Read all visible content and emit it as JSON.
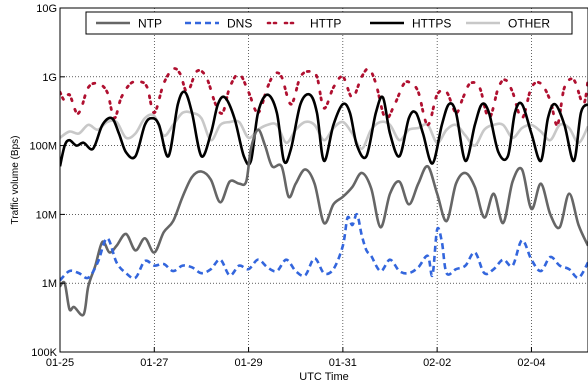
{
  "chart_data": {
    "type": "line",
    "xlabel": "UTC Time",
    "ylabel": "Traffic volume (Bps)",
    "x_ticks": [
      "01-25",
      "01-27",
      "01-29",
      "01-31",
      "02-02",
      "02-04"
    ],
    "x_tick_days": [
      0,
      2,
      4,
      6,
      8,
      10
    ],
    "xlim": [
      0,
      11.2
    ],
    "y_scale": "log",
    "ylim": [
      100000,
      10000000000
    ],
    "y_ticks": [
      {
        "label": "100K",
        "value": 100000
      },
      {
        "label": "1M",
        "value": 1000000
      },
      {
        "label": "10M",
        "value": 10000000
      },
      {
        "label": "100M",
        "value": 100000000
      },
      {
        "label": "1G",
        "value": 1000000000
      },
      {
        "label": "10G",
        "value": 10000000000
      }
    ],
    "legend_position": "top",
    "series": [
      {
        "name": "NTP",
        "color": "#666666",
        "dash": "solid",
        "x": [
          0,
          0.1,
          0.2,
          0.3,
          0.5,
          0.6,
          0.75,
          0.9,
          1.05,
          1.2,
          1.4,
          1.6,
          1.8,
          2.0,
          2.2,
          2.4,
          2.6,
          2.8,
          3.0,
          3.2,
          3.4,
          3.6,
          3.8,
          3.95,
          4.05,
          4.2,
          4.35,
          4.5,
          4.7,
          4.85,
          5.0,
          5.2,
          5.4,
          5.6,
          5.8,
          6.0,
          6.2,
          6.4,
          6.6,
          6.8,
          7.0,
          7.2,
          7.4,
          7.6,
          7.8,
          8.0,
          8.2,
          8.4,
          8.6,
          8.8,
          9.0,
          9.2,
          9.4,
          9.6,
          9.8,
          10.0,
          10.2,
          10.4,
          10.6,
          10.8,
          11.0,
          11.2
        ],
        "y": [
          900000,
          1000000,
          420000,
          450000,
          350000,
          900000,
          1800000,
          4000000,
          2800000,
          3500000,
          5200000,
          3000000,
          4500000,
          2800000,
          5500000,
          8000000,
          18000000,
          35000000,
          42000000,
          32000000,
          15000000,
          30000000,
          28000000,
          30000000,
          90000000,
          170000000,
          100000000,
          50000000,
          50000000,
          18000000,
          28000000,
          45000000,
          28000000,
          7500000,
          14000000,
          18000000,
          25000000,
          40000000,
          24000000,
          6500000,
          20000000,
          30000000,
          14000000,
          28000000,
          50000000,
          20000000,
          8000000,
          28000000,
          40000000,
          25000000,
          9000000,
          20000000,
          7500000,
          30000000,
          45000000,
          12000000,
          28000000,
          10000000,
          6500000,
          20000000,
          7000000,
          3500000
        ]
      },
      {
        "name": "DNS",
        "color": "#3366dd",
        "dash": "dashed",
        "x": [
          0,
          0.2,
          0.4,
          0.6,
          0.8,
          1.0,
          1.2,
          1.4,
          1.6,
          1.8,
          2.0,
          2.2,
          2.4,
          2.6,
          2.8,
          3.0,
          3.2,
          3.4,
          3.6,
          3.8,
          4.0,
          4.2,
          4.4,
          4.6,
          4.8,
          5.0,
          5.2,
          5.4,
          5.6,
          5.8,
          6.0,
          6.1,
          6.2,
          6.3,
          6.4,
          6.5,
          6.6,
          6.8,
          7.0,
          7.2,
          7.4,
          7.6,
          7.8,
          7.9,
          8.0,
          8.1,
          8.2,
          8.4,
          8.6,
          8.8,
          9.0,
          9.2,
          9.4,
          9.6,
          9.8,
          10.0,
          10.2,
          10.4,
          10.6,
          10.8,
          11.0,
          11.2
        ],
        "y": [
          1100000,
          1500000,
          1400000,
          1200000,
          2000000,
          4500000,
          2000000,
          1400000,
          1200000,
          2100000,
          1800000,
          1900000,
          1500000,
          1800000,
          1700000,
          1400000,
          1600000,
          2200000,
          1300000,
          1800000,
          1600000,
          2200000,
          1700000,
          1500000,
          2200000,
          1500000,
          1300000,
          2300000,
          1400000,
          1600000,
          3500000,
          9000000,
          7000000,
          10000000,
          5000000,
          3000000,
          2500000,
          1500000,
          2200000,
          1500000,
          1400000,
          1700000,
          2500000,
          1300000,
          6000000,
          4000000,
          1400000,
          1600000,
          1800000,
          2800000,
          1400000,
          1600000,
          2200000,
          1800000,
          4200000,
          2200000,
          1500000,
          2400000,
          1800000,
          1600000,
          1200000,
          2000000
        ]
      },
      {
        "name": "HTTP",
        "color": "#b01030",
        "dash": "dashdot",
        "x": [
          0,
          0.1,
          0.2,
          0.35,
          0.45,
          0.6,
          0.8,
          1.0,
          1.15,
          1.3,
          1.5,
          1.7,
          1.85,
          2.0,
          2.2,
          2.4,
          2.55,
          2.7,
          2.9,
          3.1,
          3.3,
          3.45,
          3.6,
          3.8,
          4.0,
          4.2,
          4.4,
          4.55,
          4.7,
          4.9,
          5.1,
          5.3,
          5.45,
          5.6,
          5.8,
          6.0,
          6.2,
          6.4,
          6.55,
          6.7,
          6.9,
          7.1,
          7.3,
          7.45,
          7.6,
          7.8,
          8.0,
          8.2,
          8.4,
          8.55,
          8.7,
          8.9,
          9.1,
          9.3,
          9.45,
          9.6,
          9.8,
          10.0,
          10.2,
          10.4,
          10.55,
          10.7,
          10.9,
          11.1,
          11.2
        ],
        "y": [
          600000000,
          450000000,
          550000000,
          300000000,
          350000000,
          700000000,
          800000000,
          600000000,
          250000000,
          500000000,
          800000000,
          850000000,
          700000000,
          300000000,
          800000000,
          1300000000,
          1100000000,
          600000000,
          1200000000,
          1000000000,
          400000000,
          300000000,
          700000000,
          1100000000,
          600000000,
          300000000,
          700000000,
          1100000000,
          1000000000,
          400000000,
          1000000000,
          1200000000,
          1000000000,
          350000000,
          700000000,
          1000000000,
          500000000,
          1000000000,
          1300000000,
          800000000,
          250000000,
          400000000,
          800000000,
          800000000,
          600000000,
          200000000,
          550000000,
          600000000,
          300000000,
          500000000,
          800000000,
          700000000,
          250000000,
          700000000,
          900000000,
          600000000,
          250000000,
          700000000,
          800000000,
          450000000,
          200000000,
          700000000,
          900000000,
          400000000,
          900000000
        ]
      },
      {
        "name": "HTTPS",
        "color": "#000000",
        "dash": "solid",
        "x": [
          0,
          0.1,
          0.2,
          0.35,
          0.5,
          0.7,
          0.9,
          1.1,
          1.25,
          1.4,
          1.6,
          1.8,
          1.95,
          2.1,
          2.3,
          2.5,
          2.65,
          2.8,
          3.0,
          3.2,
          3.35,
          3.5,
          3.7,
          3.9,
          4.05,
          4.2,
          4.4,
          4.6,
          4.75,
          4.9,
          5.1,
          5.3,
          5.45,
          5.6,
          5.8,
          6.0,
          6.15,
          6.3,
          6.5,
          6.7,
          6.85,
          7.0,
          7.2,
          7.4,
          7.55,
          7.7,
          7.9,
          8.1,
          8.25,
          8.4,
          8.6,
          8.8,
          8.95,
          9.1,
          9.3,
          9.5,
          9.65,
          9.8,
          10.0,
          10.2,
          10.35,
          10.5,
          10.7,
          10.9,
          11.05,
          11.2
        ],
        "y": [
          50000000,
          100000000,
          120000000,
          100000000,
          110000000,
          90000000,
          200000000,
          250000000,
          150000000,
          80000000,
          70000000,
          200000000,
          250000000,
          200000000,
          70000000,
          400000000,
          600000000,
          300000000,
          70000000,
          150000000,
          400000000,
          500000000,
          250000000,
          70000000,
          60000000,
          300000000,
          550000000,
          300000000,
          60000000,
          90000000,
          400000000,
          550000000,
          300000000,
          60000000,
          200000000,
          400000000,
          300000000,
          100000000,
          70000000,
          300000000,
          500000000,
          150000000,
          70000000,
          250000000,
          300000000,
          150000000,
          55000000,
          200000000,
          400000000,
          300000000,
          60000000,
          200000000,
          400000000,
          300000000,
          80000000,
          70000000,
          300000000,
          400000000,
          150000000,
          60000000,
          250000000,
          400000000,
          200000000,
          60000000,
          300000000,
          400000000
        ]
      },
      {
        "name": "OTHER",
        "color": "#c8c8c8",
        "dash": "solid",
        "x": [
          0,
          0.2,
          0.4,
          0.6,
          0.8,
          1.0,
          1.2,
          1.4,
          1.6,
          1.8,
          2.0,
          2.2,
          2.4,
          2.6,
          2.8,
          3.0,
          3.2,
          3.4,
          3.6,
          3.8,
          4.0,
          4.2,
          4.4,
          4.6,
          4.8,
          5.0,
          5.2,
          5.4,
          5.6,
          5.8,
          6.0,
          6.2,
          6.4,
          6.6,
          6.8,
          7.0,
          7.2,
          7.4,
          7.6,
          7.8,
          8.0,
          8.2,
          8.4,
          8.6,
          8.8,
          9.0,
          9.2,
          9.4,
          9.6,
          9.8,
          10.0,
          10.2,
          10.4,
          10.6,
          10.8,
          11.0,
          11.2
        ],
        "y": [
          130000000,
          160000000,
          150000000,
          200000000,
          170000000,
          220000000,
          220000000,
          130000000,
          150000000,
          250000000,
          270000000,
          140000000,
          200000000,
          300000000,
          300000000,
          250000000,
          120000000,
          200000000,
          220000000,
          220000000,
          130000000,
          170000000,
          200000000,
          200000000,
          110000000,
          170000000,
          220000000,
          200000000,
          120000000,
          180000000,
          220000000,
          150000000,
          90000000,
          170000000,
          220000000,
          200000000,
          120000000,
          170000000,
          180000000,
          200000000,
          110000000,
          170000000,
          200000000,
          140000000,
          100000000,
          170000000,
          200000000,
          200000000,
          130000000,
          180000000,
          200000000,
          160000000,
          120000000,
          200000000,
          180000000,
          110000000,
          190000000
        ]
      }
    ]
  }
}
